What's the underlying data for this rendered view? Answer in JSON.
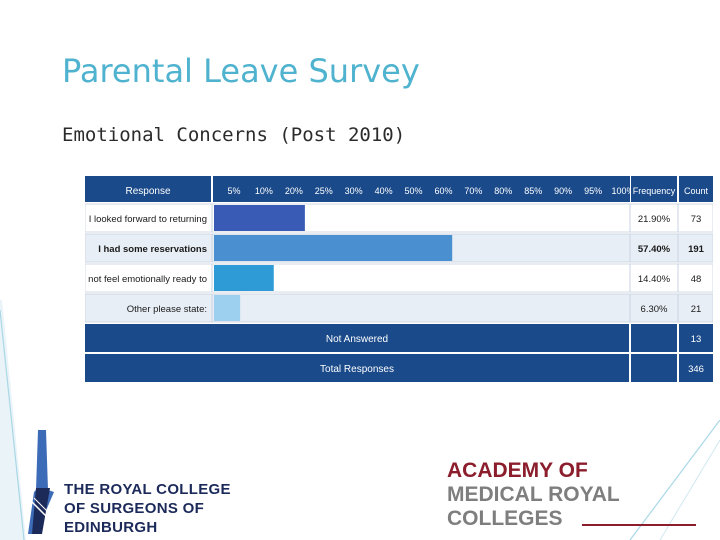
{
  "slide": {
    "title": "Parental Leave Survey",
    "subtitle": "Emotional Concerns (Post 2010)"
  },
  "chart_data": {
    "type": "bar",
    "orientation": "horizontal",
    "header": {
      "response": "Response",
      "ticks": [
        "5%",
        "10%",
        "20%",
        "25%",
        "30%",
        "40%",
        "50%",
        "60%",
        "70%",
        "80%",
        "85%",
        "90%",
        "95%",
        "100%"
      ],
      "frequency": "Frequency",
      "count": "Count"
    },
    "rows": [
      {
        "label": "I looked forward to returning",
        "value": 21.9,
        "frequency": "21.90%",
        "count": "73",
        "color": "#3a5bb5",
        "bold": false
      },
      {
        "label": "I had some reservations",
        "value": 57.4,
        "frequency": "57.40%",
        "count": "191",
        "color": "#4a8fd0",
        "bold": true
      },
      {
        "label": "I did not feel emotionally ready to",
        "value": 14.4,
        "frequency": "14.40%",
        "count": "48",
        "color": "#2e9ad6",
        "bold": false
      },
      {
        "label": "Other please state:",
        "value": 6.3,
        "frequency": "6.30%",
        "count": "21",
        "color": "#9dd0ee",
        "bold": false
      }
    ],
    "footer": [
      {
        "label": "Not Answered",
        "count": "13"
      },
      {
        "label": "Total Responses",
        "count": "346"
      }
    ],
    "xlim": [
      0,
      100
    ],
    "colors": {
      "header": "#1a4a8a",
      "row_bg": "#ffffff",
      "row_alt": "#e8eef6",
      "grid": "#c8d2e0"
    }
  },
  "logos": {
    "rcs": {
      "line1": "THE ROYAL COLLEGE",
      "line2": "OF SURGEONS OF",
      "line3": "EDINBURGH"
    },
    "amrc": {
      "line1": "ACADEMY OF",
      "line2": "MEDICAL ROYAL",
      "line3": "COLLEGES"
    }
  }
}
